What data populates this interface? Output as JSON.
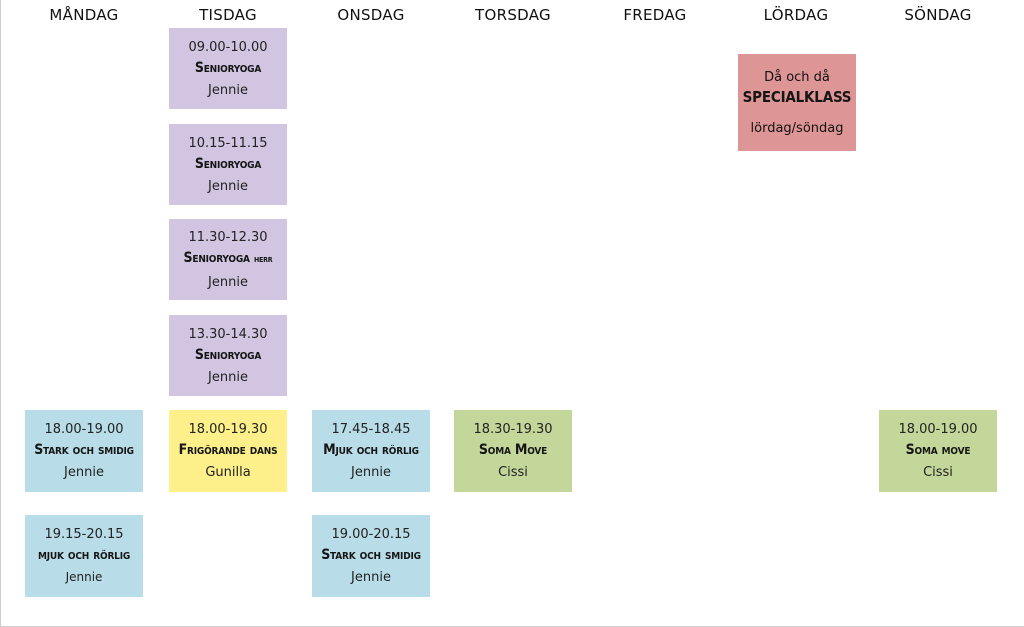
{
  "days": [
    "MÅNDAG",
    "TISDAG",
    "ONSDAG",
    "TORSDAG",
    "FREDAG",
    "LÖRDAG",
    "SÖNDAG"
  ],
  "tuesday": [
    {
      "time": "09.00-10.00",
      "title": "Senioryoga",
      "person": "Jennie"
    },
    {
      "time": "10.15-11.15",
      "title": "Senioryoga",
      "person": "Jennie"
    },
    {
      "time": "11.30-12.30",
      "title": "Senioryoga",
      "title_suffix": "herr",
      "person": "Jennie"
    },
    {
      "time": "13.30-14.30",
      "title": "Senioryoga",
      "person": "Jennie"
    },
    {
      "time": "18.00-19.30",
      "title": "Frigörande dans",
      "person": "Gunilla"
    }
  ],
  "monday": [
    {
      "time": "18.00-19.00",
      "title": "Stark och smidig",
      "person": "Jennie"
    },
    {
      "time": "19.15-20.15",
      "title": "mjuk och rörlig",
      "person": "Jennie"
    }
  ],
  "wednesday": [
    {
      "time": "17.45-18.45",
      "title": "Mjuk och rörlig",
      "person": "Jennie"
    },
    {
      "time": "19.00-20.15",
      "title": "Stark och smidig",
      "person": "Jennie"
    }
  ],
  "thursday": [
    {
      "time": "18.30-19.30",
      "title": "Soma Move",
      "person": "Cissi"
    }
  ],
  "saturday": {
    "top": "Då och då",
    "title": "SPECIALKLASS",
    "bottom": "lördag/söndag"
  },
  "sunday": [
    {
      "time": "18.00-19.00",
      "title": "Soma move",
      "person": "Cissi"
    }
  ],
  "colors": {
    "purple": "#d1c5e1",
    "blue": "#b9dde8",
    "yellow": "#fdf08a",
    "green": "#c4d79a",
    "red": "#de9595"
  }
}
